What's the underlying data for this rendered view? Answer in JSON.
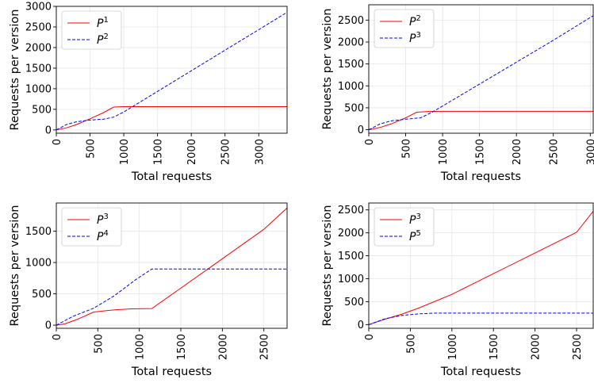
{
  "chart_data": [
    {
      "type": "line",
      "xlabel": "Total requests",
      "ylabel": "Requests per version",
      "xlim": [
        0,
        3420
      ],
      "ylim": [
        -80,
        3000
      ],
      "xticks": [
        0,
        500,
        1000,
        1500,
        2000,
        2500,
        3000
      ],
      "yticks": [
        0,
        500,
        1000,
        1500,
        2000,
        2500,
        3000
      ],
      "grid": true,
      "legend_position": "top-left",
      "series": [
        {
          "name": "P",
          "superscript": "1",
          "color": "#ff0000",
          "dash": "solid",
          "x": [
            0,
            150,
            300,
            500,
            700,
            850,
            1000,
            1500,
            2000,
            2500,
            3000,
            3420
          ],
          "y": [
            0,
            50,
            130,
            270,
            420,
            555,
            565,
            565,
            565,
            565,
            565,
            565
          ]
        },
        {
          "name": "P",
          "superscript": "2",
          "color": "#0000ff",
          "dash": "dashed",
          "x": [
            0,
            150,
            300,
            500,
            700,
            850,
            1000,
            1500,
            2000,
            2500,
            3000,
            3420
          ],
          "y": [
            0,
            130,
            200,
            240,
            260,
            310,
            435,
            935,
            1435,
            1935,
            2435,
            2855
          ]
        }
      ]
    },
    {
      "type": "line",
      "xlabel": "Total requests",
      "ylabel": "Requests per version",
      "xlim": [
        0,
        3040
      ],
      "ylim": [
        -80,
        2850
      ],
      "xticks": [
        0,
        500,
        1000,
        1500,
        2000,
        2500,
        3000
      ],
      "yticks": [
        0,
        500,
        1000,
        1500,
        2000,
        2500
      ],
      "grid": true,
      "legend_position": "top-left",
      "series": [
        {
          "name": "P",
          "superscript": "2",
          "color": "#ff0000",
          "dash": "solid",
          "x": [
            0,
            150,
            300,
            500,
            650,
            800,
            1000,
            1500,
            2000,
            2500,
            3040
          ],
          "y": [
            0,
            50,
            130,
            270,
            400,
            415,
            420,
            420,
            420,
            420,
            420
          ]
        },
        {
          "name": "P",
          "superscript": "3",
          "color": "#0000ff",
          "dash": "dashed",
          "x": [
            0,
            150,
            300,
            500,
            700,
            850,
            1000,
            1500,
            2000,
            2500,
            3040
          ],
          "y": [
            0,
            130,
            200,
            240,
            270,
            390,
            540,
            1040,
            1540,
            2040,
            2600
          ]
        }
      ]
    },
    {
      "type": "line",
      "xlabel": "Total requests",
      "ylabel": "Requests per version",
      "xlim": [
        0,
        2780
      ],
      "ylim": [
        -50,
        1950
      ],
      "xticks": [
        0,
        500,
        1000,
        1500,
        2000,
        2500
      ],
      "yticks": [
        0,
        500,
        1000,
        1500
      ],
      "grid": true,
      "legend_position": "top-left",
      "series": [
        {
          "name": "P",
          "superscript": "3",
          "color": "#ff0000",
          "dash": "solid",
          "x": [
            0,
            100,
            250,
            450,
            700,
            900,
            1150,
            1500,
            2000,
            2500,
            2780
          ],
          "y": [
            0,
            20,
            90,
            210,
            245,
            260,
            265,
            590,
            1060,
            1530,
            1870
          ]
        },
        {
          "name": "P",
          "superscript": "4",
          "color": "#0000ff",
          "dash": "dashed",
          "x": [
            0,
            200,
            450,
            700,
            950,
            1150,
            1500,
            2000,
            2500,
            2780
          ],
          "y": [
            0,
            140,
            270,
            470,
            720,
            895,
            895,
            895,
            895,
            895
          ]
        }
      ]
    },
    {
      "type": "line",
      "xlabel": "Total requests",
      "ylabel": "Requests per version",
      "xlim": [
        0,
        2700
      ],
      "ylim": [
        -80,
        2650
      ],
      "xticks": [
        0,
        500,
        1000,
        1500,
        2000,
        2500
      ],
      "yticks": [
        0,
        500,
        1000,
        1500,
        2000,
        2500
      ],
      "grid": true,
      "legend_position": "top-left",
      "series": [
        {
          "name": "P",
          "superscript": "3",
          "color": "#ff0000",
          "dash": "solid",
          "x": [
            0,
            200,
            400,
            600,
            800,
            1000,
            1500,
            2000,
            2500,
            2700
          ],
          "y": [
            0,
            120,
            230,
            360,
            510,
            660,
            1110,
            1560,
            2010,
            2470
          ]
        },
        {
          "name": "P",
          "superscript": "5",
          "color": "#0000ff",
          "dash": "dashed",
          "x": [
            0,
            200,
            400,
            600,
            800,
            1000,
            1500,
            2000,
            2500,
            2700
          ],
          "y": [
            0,
            130,
            200,
            235,
            250,
            250,
            250,
            250,
            250,
            250
          ]
        }
      ]
    }
  ]
}
